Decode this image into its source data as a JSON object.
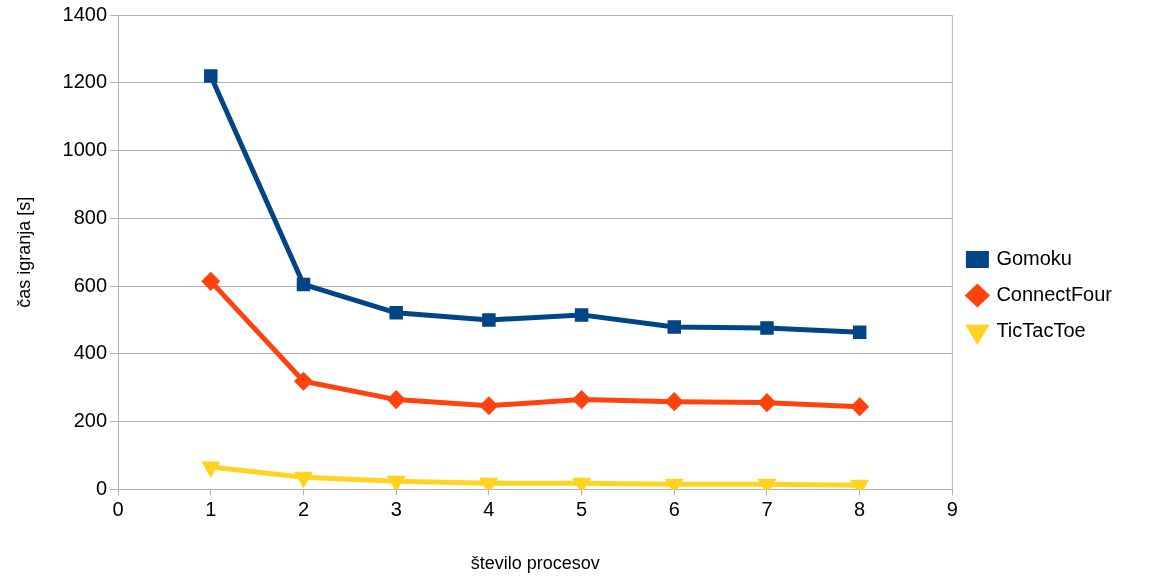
{
  "chart_data": {
    "type": "line",
    "xlabel": "število procesov",
    "ylabel": "čas igranja [s]",
    "x": [
      1,
      2,
      3,
      4,
      5,
      6,
      7,
      8
    ],
    "series": [
      {
        "name": "Gomoku",
        "color": "#004586",
        "marker": "square",
        "values": [
          1220,
          605,
          521,
          500,
          515,
          479,
          476,
          464
        ]
      },
      {
        "name": "ConnectFour",
        "color": "#ff420e",
        "marker": "diamond",
        "values": [
          614,
          319,
          265,
          247,
          265,
          259,
          256,
          244
        ]
      },
      {
        "name": "TicTacToe",
        "color": "#ffd320",
        "marker": "triangle",
        "values": [
          66,
          36,
          24,
          18,
          18,
          15,
          15,
          12
        ]
      }
    ],
    "xlim": [
      0,
      9
    ],
    "xticks": [
      0,
      1,
      2,
      3,
      4,
      5,
      6,
      7,
      8,
      9
    ],
    "ylim": [
      0,
      1400
    ],
    "yticks": [
      0,
      200,
      400,
      600,
      800,
      1000,
      1200,
      1400
    ],
    "grid": "y",
    "legend": "right",
    "line_style": "solid"
  }
}
